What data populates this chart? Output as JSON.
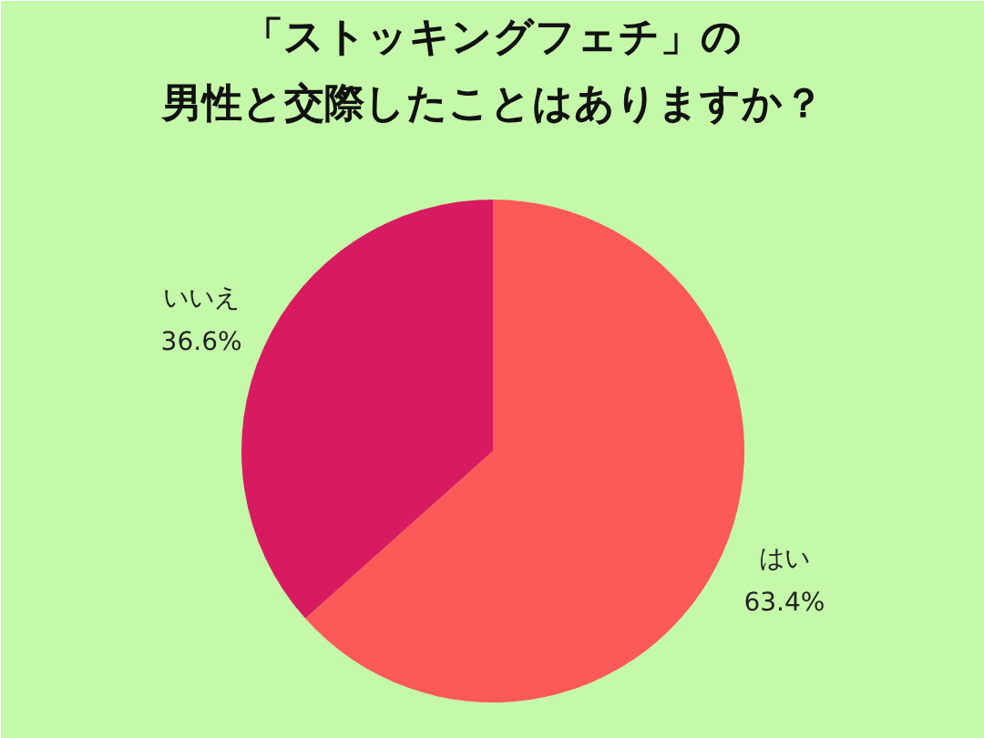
{
  "chart_data": {
    "type": "pie",
    "title": "「ストッキングフェチ」の男性と交際したことはありますか？",
    "categories": [
      "はい",
      "いいえ"
    ],
    "values": [
      63.4,
      36.6
    ],
    "colors": [
      "#fe5959",
      "#d81b60"
    ],
    "value_labels": [
      "63.4%",
      "36.6%"
    ],
    "legend": false
  }
}
